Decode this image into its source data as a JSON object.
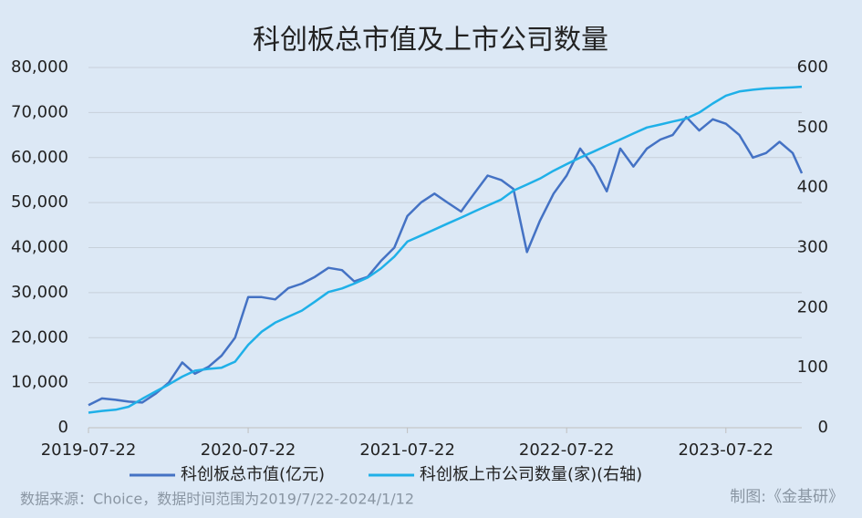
{
  "chart_data": {
    "type": "line",
    "title": "科创板总市值及上市公司数量",
    "x": [
      "2019-07-22",
      "2019-08-22",
      "2019-09-22",
      "2019-10-22",
      "2019-11-22",
      "2019-12-22",
      "2020-01-22",
      "2020-02-22",
      "2020-03-22",
      "2020-04-22",
      "2020-05-22",
      "2020-06-22",
      "2020-07-22",
      "2020-08-22",
      "2020-09-22",
      "2020-10-22",
      "2020-11-22",
      "2020-12-22",
      "2021-01-22",
      "2021-02-22",
      "2021-03-22",
      "2021-04-22",
      "2021-05-22",
      "2021-06-22",
      "2021-07-22",
      "2021-08-22",
      "2021-09-22",
      "2021-10-22",
      "2021-11-22",
      "2021-12-22",
      "2022-01-22",
      "2022-02-22",
      "2022-03-22",
      "2022-04-22",
      "2022-05-22",
      "2022-06-22",
      "2022-07-22",
      "2022-08-22",
      "2022-09-22",
      "2022-10-22",
      "2022-11-22",
      "2022-12-22",
      "2023-01-22",
      "2023-02-22",
      "2023-03-22",
      "2023-04-22",
      "2023-05-22",
      "2023-06-22",
      "2023-07-22",
      "2023-08-22",
      "2023-09-22",
      "2023-10-22",
      "2023-11-22",
      "2023-12-22",
      "2024-01-12"
    ],
    "series": [
      {
        "name": "科创板总市值(亿元)",
        "color": "#4472c4",
        "axis": "y",
        "values": [
          5000,
          6500,
          6200,
          5800,
          5600,
          7500,
          10000,
          14500,
          12000,
          13500,
          16000,
          20000,
          29000,
          29000,
          28500,
          31000,
          32000,
          33500,
          35500,
          35000,
          32500,
          33500,
          37000,
          40000,
          47000,
          50000,
          52000,
          50000,
          48000,
          52000,
          56000,
          55000,
          53000,
          39000,
          46000,
          52000,
          56000,
          62000,
          58000,
          52500,
          62000,
          58000,
          62000,
          64000,
          65000,
          69000,
          66000,
          68500,
          67500,
          65000,
          60000,
          61000,
          63500,
          61000,
          56500
        ]
      },
      {
        "name": "科创板上市公司数量(家)(右轴)",
        "color": "#1fb0e8",
        "axis": "y2",
        "values": [
          25,
          28,
          30,
          35,
          48,
          60,
          72,
          85,
          95,
          98,
          100,
          110,
          138,
          160,
          175,
          185,
          195,
          210,
          226,
          232,
          240,
          250,
          265,
          285,
          310,
          320,
          330,
          340,
          350,
          360,
          370,
          380,
          395,
          405,
          415,
          428,
          439,
          450,
          460,
          470,
          480,
          490,
          500,
          505,
          510,
          515,
          525,
          540,
          553,
          560,
          563,
          565,
          566,
          567,
          568
        ]
      }
    ],
    "xlim": [
      "2019-07-22",
      "2024-01-12"
    ],
    "xticks": [
      "2019-07-22",
      "2020-07-22",
      "2021-07-22",
      "2022-07-22",
      "2023-07-22"
    ],
    "ylim": [
      0,
      80000
    ],
    "yticks": [
      0,
      {
        "value": 10000,
        "label": "10,000"
      },
      {
        "value": 20000,
        "label": "20,000"
      },
      {
        "value": 30000,
        "label": "30,000"
      },
      {
        "value": 40000,
        "label": "40,000"
      },
      {
        "value": 50000,
        "label": "50,000"
      },
      {
        "value": 60000,
        "label": "60,000"
      },
      {
        "value": 70000,
        "label": "70,000"
      },
      {
        "value": 80000,
        "label": "80,000"
      }
    ],
    "y2lim": [
      0,
      600
    ],
    "y2ticks": [
      0,
      100,
      200,
      300,
      400,
      500,
      600
    ],
    "grid": true,
    "legend": "bottom",
    "source": "数据来源：Choice，数据时间范围为2019/7/22-2024/1/12",
    "credit": "制图:《金基研》"
  }
}
